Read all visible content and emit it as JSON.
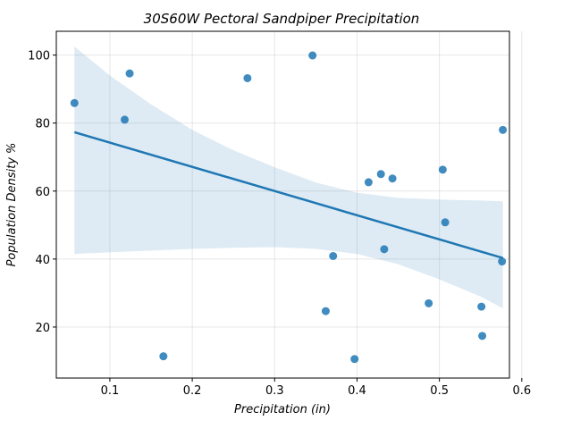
{
  "chart_data": {
    "type": "scatter",
    "title": "30S60W Pectoral Sandpiper Precipitation",
    "xlabel": "Precipitation (in)",
    "ylabel": "Population Density %",
    "xlim": [
      0.035,
      0.585
    ],
    "ylim": [
      5,
      107
    ],
    "xticks": [
      0.1,
      0.2,
      0.3,
      0.4,
      0.5,
      0.6
    ],
    "xtick_labels": [
      "0.1",
      "0.2",
      "0.3",
      "0.4",
      "0.5",
      "0.6"
    ],
    "yticks": [
      20,
      40,
      60,
      80,
      100
    ],
    "ytick_labels": [
      "20",
      "40",
      "60",
      "80",
      "100"
    ],
    "grid": true,
    "color": "#1f77b4",
    "points": [
      {
        "x": 0.057,
        "y": 85.9
      },
      {
        "x": 0.118,
        "y": 81.0
      },
      {
        "x": 0.124,
        "y": 94.6
      },
      {
        "x": 0.165,
        "y": 11.4
      },
      {
        "x": 0.267,
        "y": 93.2
      },
      {
        "x": 0.346,
        "y": 99.9
      },
      {
        "x": 0.362,
        "y": 24.7
      },
      {
        "x": 0.371,
        "y": 40.9
      },
      {
        "x": 0.397,
        "y": 10.6
      },
      {
        "x": 0.414,
        "y": 62.6
      },
      {
        "x": 0.429,
        "y": 65.0
      },
      {
        "x": 0.433,
        "y": 42.9
      },
      {
        "x": 0.443,
        "y": 63.7
      },
      {
        "x": 0.487,
        "y": 27.0
      },
      {
        "x": 0.504,
        "y": 66.3
      },
      {
        "x": 0.507,
        "y": 50.8
      },
      {
        "x": 0.551,
        "y": 26.0
      },
      {
        "x": 0.552,
        "y": 17.4
      },
      {
        "x": 0.576,
        "y": 39.3
      },
      {
        "x": 0.577,
        "y": 78.0
      }
    ],
    "regression_line": {
      "x": [
        0.057,
        0.577
      ],
      "y": [
        77.3,
        40.3
      ]
    },
    "confidence_band": {
      "x": [
        0.057,
        0.1,
        0.15,
        0.2,
        0.25,
        0.3,
        0.35,
        0.4,
        0.45,
        0.5,
        0.55,
        0.577
      ],
      "upper": [
        102.5,
        94.0,
        85.5,
        78.0,
        72.0,
        67.0,
        62.5,
        59.5,
        58.0,
        57.5,
        57.2,
        57.0
      ],
      "lower": [
        41.5,
        42.0,
        42.5,
        43.0,
        43.3,
        43.5,
        43.0,
        41.5,
        38.5,
        34.0,
        29.0,
        25.5
      ]
    }
  }
}
